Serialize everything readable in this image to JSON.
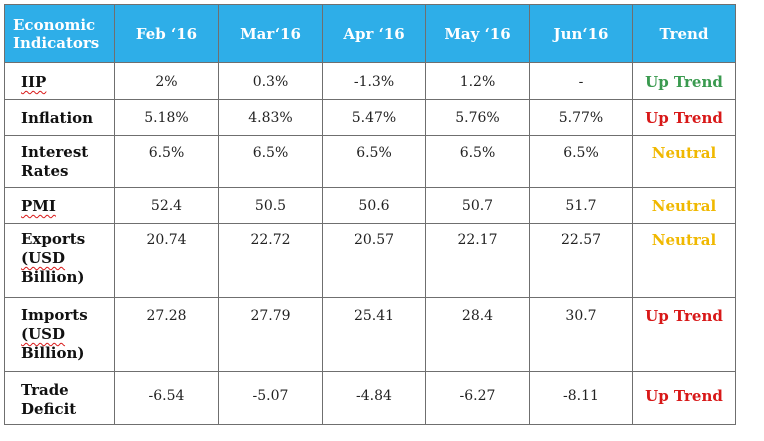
{
  "header": {
    "indicator": "Economic Indicators",
    "months": [
      "Feb ‘16",
      "Mar‘16",
      "Apr ‘16",
      "May ‘16",
      "Jun‘16"
    ],
    "trend": "Trend"
  },
  "rows": [
    {
      "label": "IIP",
      "values": [
        "2%",
        "0.3%",
        "-1.3%",
        "1.2%",
        "-"
      ],
      "trend": "Up Trend",
      "trend_color": "#3a9a4f"
    },
    {
      "label": "Inflation",
      "values": [
        "5.18%",
        "4.83%",
        "5.47%",
        "5.76%",
        "5.77%"
      ],
      "trend": "Up Trend",
      "trend_color": "#d81818"
    },
    {
      "label_lines": [
        "Interest",
        "Rates"
      ],
      "values": [
        "6.5%",
        "6.5%",
        "6.5%",
        "6.5%",
        "6.5%"
      ],
      "trend": "Neutral",
      "trend_color": "#f0b800"
    },
    {
      "label": "PMI",
      "values": [
        "52.4",
        "50.5",
        "50.6",
        "50.7",
        "51.7"
      ],
      "trend": "Neutral",
      "trend_color": "#f0b800"
    },
    {
      "label_lines": [
        "Exports",
        "(USD",
        "Billion)"
      ],
      "values": [
        "20.74",
        "22.72",
        "20.57",
        "22.17",
        "22.57"
      ],
      "trend": "Neutral",
      "trend_color": "#f0b800"
    },
    {
      "label_lines": [
        "Imports",
        "(USD",
        "Billion)"
      ],
      "values": [
        "27.28",
        "27.79",
        "25.41",
        "28.4",
        "30.7"
      ],
      "trend": "Up Trend",
      "trend_color": "#d81818"
    },
    {
      "label_lines": [
        "Trade",
        "Deficit"
      ],
      "values": [
        "-6.54",
        "-5.07",
        "-4.84",
        "-6.27",
        "-8.11"
      ],
      "trend": "Up Trend",
      "trend_color": "#d81818"
    }
  ],
  "colors": {
    "header_bg": "#2eaee8",
    "header_text": "#ffffff",
    "border": "#6f6f6f"
  }
}
